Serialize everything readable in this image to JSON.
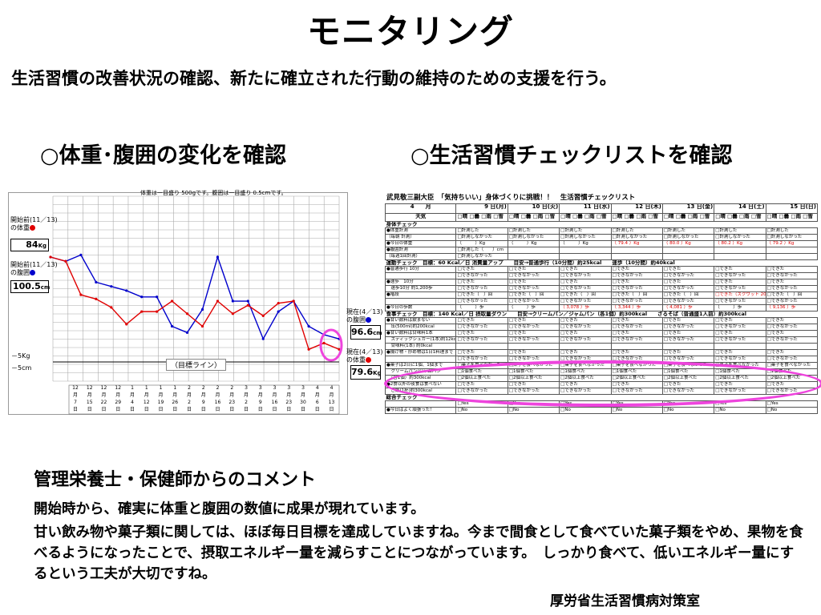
{
  "title": "モニタリング",
  "subtitle": "生活習慣の改善状況の確認、新たに確立された行動の維持のための支援を行う。",
  "left_heading": "○体重･腹囲の変化を確認",
  "right_heading": "○生活習慣チェックリストを確認",
  "chart": {
    "note": "体重は一目盛り 500gです。腹囲は一目盛り 0.5cmです。",
    "start_weight_label": "開始前(11／13)\nの体重",
    "start_weight_value": "84",
    "start_weight_unit": "Kg",
    "start_waist_label": "開始前(11／13)\nの腹囲",
    "start_waist_value": "100.5",
    "start_waist_unit": "cm",
    "current_waist_label": "現在(4／13)\nの腹囲",
    "current_waist_value": "96.6",
    "current_waist_unit": "cm",
    "current_weight_label": "現在(4／13)\nの体重",
    "current_weight_value": "79.6",
    "current_weight_unit": "Kg",
    "minus_kg": "－5Kg",
    "minus_cm": "－5cm",
    "goal_label": "（目標ライン）",
    "dates": [
      [
        "12",
        "月",
        "7",
        "日"
      ],
      [
        "12",
        "月",
        "15",
        "日"
      ],
      [
        "12",
        "月",
        "22",
        "日"
      ],
      [
        "12",
        "月",
        "29",
        "日"
      ],
      [
        "1",
        "月",
        "4",
        "日"
      ],
      [
        "1",
        "月",
        "12",
        "日"
      ],
      [
        "1",
        "月",
        "19",
        "日"
      ],
      [
        "1",
        "月",
        "26",
        "日"
      ],
      [
        "2",
        "月",
        "2",
        "日"
      ],
      [
        "2",
        "月",
        "9",
        "日"
      ],
      [
        "2",
        "月",
        "16",
        "日"
      ],
      [
        "2",
        "月",
        "23",
        "日"
      ],
      [
        "3",
        "月",
        "2",
        "日"
      ],
      [
        "3",
        "月",
        "9",
        "日"
      ],
      [
        "3",
        "月",
        "16",
        "日"
      ],
      [
        "3",
        "月",
        "23",
        "日"
      ],
      [
        "3",
        "月",
        "30",
        "日"
      ],
      [
        "4",
        "月",
        "6",
        "日"
      ],
      [
        "4",
        "月",
        "13",
        "日"
      ]
    ],
    "colors": {
      "weight": "#e00000",
      "waist": "#0000cc",
      "highlight": "#ee44dd"
    }
  },
  "chart_data": {
    "type": "line",
    "series": [
      {
        "name": "体重",
        "values": [
          84.0,
          83.8,
          82.2,
          82.0,
          81.6,
          80.8,
          81.4,
          81.4,
          81.9,
          81.3,
          80.7,
          81.9,
          81.3,
          81.7,
          81.2,
          81.8,
          81.9,
          79.6,
          79.9,
          79.6
        ]
      },
      {
        "name": "腹囲",
        "values": [
          100.5,
          100.3,
          100.6,
          99.3,
          99.1,
          98.9,
          98.6,
          98.6,
          97.2,
          96.9,
          98.0,
          100.5,
          98.4,
          98.4,
          96.6,
          97.9,
          98.4,
          97.2,
          96.8,
          96.6
        ]
      }
    ]
  },
  "checklist": {
    "title": "武見敬三副大臣　「気持ちいい」身体づくりに挑戦！！　生活習慣チェックリスト",
    "month": "4　　月",
    "days": [
      "9 日(月)",
      "10 日(火)",
      "11 日(水)",
      "12 日(木)",
      "13 日(金)",
      "14 日(土)",
      "15 日(日)"
    ],
    "weather_label": "天気",
    "weather_options": "□晴 □曇 □雨 □雪",
    "sections": [
      {
        "title": "身体チェック",
        "rows": [
          {
            "label": "●体重計測",
            "cells": [
              "□計測した",
              "□計測した",
              "□計測した",
              "□計測した",
              "□計測した",
              "□計測した",
              "□計測した"
            ]
          },
          {
            "label": "（毎朝 計測）",
            "cells": [
              "□計測しなかった",
              "□計測しなかった",
              "□計測しなかった",
              "□計測しなかった",
              "□計測しなかった",
              "□計測しなかった",
              "□計測しなかった"
            ]
          },
          {
            "label": "●今日の体重",
            "cells": [
              "（　　　）Kg",
              "（　　　）Kg",
              "（　　　）Kg",
              "（ 79.4 ）Kg",
              "（ 80.0 ）Kg",
              "（ 80.2 ）Kg",
              "（ 79.2 ）Kg"
            ]
          },
          {
            "label": "●腹囲計測",
            "cells": [
              "□計測した（　　）cm",
              "",
              "",
              "",
              "",
              "",
              ""
            ]
          },
          {
            "label": "（毎週1回計測）",
            "cells": [
              "□計測しなかった",
              "",
              "",
              "",
              "",
              "",
              ""
            ]
          }
        ]
      },
      {
        "title": "運動チェック　目標：60 Kcal／日 消費量アップ　　目安→普通歩行（10分間）約25kcal　　速歩（10分間）約40kcal",
        "rows": [
          {
            "label": "●普通歩行 10分",
            "cells": [
              "□できた",
              "□できた",
              "□できた",
              "□できた",
              "□できた",
              "□できた",
              "□できた"
            ]
          },
          {
            "label": "",
            "cells": [
              "□できなかった",
              "□できなかった",
              "□できなかった",
              "□できなかった",
              "□できなかった",
              "□できなかった",
              "□できなかった"
            ]
          },
          {
            "label": "●速歩　10分",
            "cells": [
              "□できた",
              "□できた",
              "□できた",
              "□できた",
              "□できた",
              "□できた",
              "□できた"
            ]
          },
          {
            "label": "　速歩10分 約1,200歩",
            "cells": [
              "□できなかった",
              "□できなかった",
              "□できなかった",
              "□できなかった",
              "□できなかった",
              "□できなかった",
              "□できなかった"
            ]
          },
          {
            "label": "●階段",
            "cells": [
              "□できた（　）回",
              "□できた（　）回",
              "□できた（　）回",
              "□できた（　）回",
              "□できた（　）回",
              "□できた（スクワット 20）回",
              "□できた（　）回"
            ]
          },
          {
            "label": "",
            "cells": [
              "□できなかった",
              "□できなかった",
              "□できなかった",
              "□できなかった",
              "□できなかった",
              "□できなかった",
              "□できなかった"
            ]
          },
          {
            "label": "●今日の歩数",
            "cells": [
              "（　　　）歩",
              "（　　　）歩",
              "（ 3,078 ）歩",
              "（ 3,344 ）歩",
              "（ 4,081 ）歩",
              "（　　　）歩",
              "（ 9,136 ）歩"
            ]
          }
        ]
      },
      {
        "title": "食事チェック　目標：140 Kcal／日 摂取量ダウン　　目安→クリームパン／ジャムパン（各1個）約300kcal　　ざるそば（普通盛1人前）約300kcal",
        "rows": [
          {
            "label": "●甘い飲料は飲まない",
            "cells": [
              "□できた",
              "□できた",
              "□できた",
              "□できた",
              "□できた",
              "□できた",
              "□できた"
            ]
          },
          {
            "label": "　缶(500ml)約200kcal",
            "cells": [
              "□できなかった",
              "□できなかった",
              "□できなかった",
              "□できなかった",
              "□できなかった",
              "□できなかった",
              "□できなかった"
            ]
          },
          {
            "label": "●甘い飲料は甘味料1本",
            "cells": [
              "□できた",
              "□できた",
              "□できた",
              "□できた",
              "□できた",
              "□できた",
              "□できた"
            ]
          },
          {
            "label": "　スティックシュガー(1本)約12kcal",
            "cells": [
              "□できなかった",
              "□できなかった",
              "□できなかった",
              "□できなかった",
              "□できなかった",
              "□できなかった",
              "□できなかった"
            ]
          },
          {
            "label": "　甘味料(1本) 約0kcal",
            "cells": [
              "",
              "",
              "",
              "",
              "",
              "",
              ""
            ]
          },
          {
            "label": "●揚げ物・炒め物は1日1料理まで",
            "cells": [
              "□できた",
              "□できた",
              "□できた",
              "□できた",
              "□できた",
              "□できた",
              "□できた"
            ]
          },
          {
            "label": "",
            "cells": [
              "□できなかった",
              "□できなかった",
              "□できなかった",
              "□できなかった",
              "□できなかった",
              "□できなかった",
              "□できなかった"
            ]
          },
          {
            "label": "●菓子は2日に1個、1個まで",
            "cells": [
              "□菓子を食べなかった",
              "□菓子を食べなかった",
              "□菓子を食べなかった",
              "□菓子を食べなかった",
              "□菓子を食べなかった",
              "□菓子を食べなかった",
              "□菓子を食べなかった"
            ]
          },
          {
            "label": "　クリームパン/ジャムパン",
            "cells": [
              "□1個食べた",
              "□1個食べた",
              "□1個食べた",
              "□1個食べた",
              "□1個食べた",
              "□1個食べた",
              "□1個食べた"
            ]
          },
          {
            "label": "　（各1個）約300kcal",
            "cells": [
              "□2個以上食べた",
              "□2個以上食べた",
              "□2個以上食べた",
              "□2個以上食べた",
              "□2個以上食べた",
              "□2個以上食べた",
              "□2個以上食べた"
            ]
          },
          {
            "label": "●2食以外の夜食は食べない",
            "cells": [
              "□できた",
              "□できた",
              "□できた",
              "□できた",
              "□できた",
              "□できた",
              "□できた"
            ]
          },
          {
            "label": "　ご飯(1杯)約300kcal",
            "cells": [
              "□できなかった",
              "□できなかった",
              "□できなかった",
              "□できなかった",
              "□できなかった",
              "□できなかった",
              "□できなかった"
            ]
          }
        ]
      },
      {
        "title": "総合チェック",
        "rows": [
          {
            "label": "",
            "cells": [
              "□Yes",
              "□Yes",
              "□Yes",
              "□Yes",
              "□Yes",
              "□Yes",
              "□Yes"
            ]
          },
          {
            "label": "●今日はよく頑張った！",
            "cells": [
              "□No",
              "□No",
              "□No",
              "□No",
              "□No",
              "□No",
              "□No"
            ]
          }
        ]
      }
    ]
  },
  "comment_heading": "管理栄養士・保健師からのコメント",
  "comment_1": "開始時から、確実に体重と腹囲の数値に成果が現れています。",
  "comment_2": "甘い飲み物や菓子類に関しては、ほぼ毎日目標を達成していますね。今まで間食として食べていた菓子類をやめ、果物を食べるようになったことで、摂取エネルギー量を減らすことにつながっています。　しっかり食べて、低いエネルギー量にするという工夫が大切ですね。",
  "source": "厚労省生活習慣病対策室"
}
